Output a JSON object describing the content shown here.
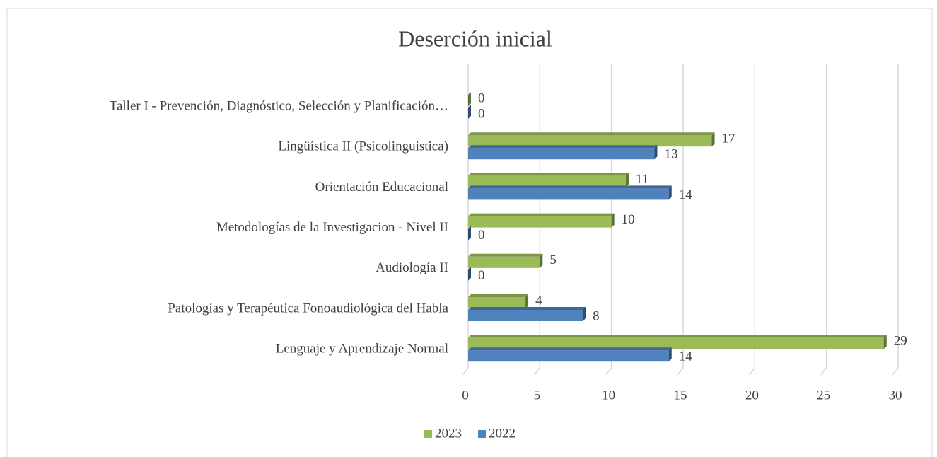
{
  "chart_data": {
    "type": "bar",
    "orientation": "horizontal",
    "title": "Deserción inicial",
    "categories": [
      "Taller I - Prevención, Diagnóstico, Selección y Planificación…",
      "Lingüística II (Psicolinguistica)",
      "Orientación Educacional",
      "Metodologías de la Investigacion - Nivel II",
      "Audiología II",
      "Patologías y Terapéutica Fonoaudiológica del Habla",
      "Lenguaje y Aprendizaje Normal"
    ],
    "series": [
      {
        "name": "2023",
        "color": "#9bbb59",
        "values": [
          0,
          17,
          11,
          10,
          5,
          4,
          29
        ]
      },
      {
        "name": "2022",
        "color": "#4f81bd",
        "values": [
          0,
          13,
          14,
          0,
          0,
          8,
          14
        ]
      }
    ],
    "xlim": [
      0,
      30
    ],
    "xticks": [
      0,
      5,
      10,
      15,
      20,
      25,
      30
    ],
    "grid": true,
    "legend": "bottom"
  }
}
